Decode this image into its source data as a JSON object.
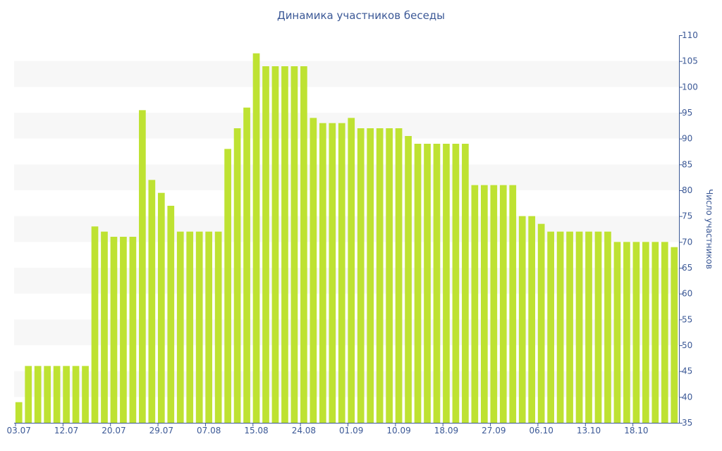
{
  "chart_data": {
    "type": "bar",
    "title": "Динамика участников беседы",
    "xlabel": "",
    "ylabel": "Число участников",
    "ylim": [
      35,
      110
    ],
    "yticks": [
      35,
      40,
      45,
      50,
      55,
      60,
      65,
      70,
      75,
      80,
      85,
      90,
      95,
      100,
      105,
      110
    ],
    "x_tick_labels": [
      {
        "index": 0,
        "label": "03.07"
      },
      {
        "index": 5,
        "label": "12.07"
      },
      {
        "index": 10,
        "label": "20.07"
      },
      {
        "index": 15,
        "label": "29.07"
      },
      {
        "index": 20,
        "label": "07.08"
      },
      {
        "index": 25,
        "label": "15.08"
      },
      {
        "index": 30,
        "label": "24.08"
      },
      {
        "index": 35,
        "label": "01.09"
      },
      {
        "index": 40,
        "label": "10.09"
      },
      {
        "index": 45,
        "label": "18.09"
      },
      {
        "index": 50,
        "label": "27.09"
      },
      {
        "index": 55,
        "label": "06.10"
      },
      {
        "index": 60,
        "label": "13.10"
      },
      {
        "index": 65,
        "label": "18.10"
      }
    ],
    "values": [
      39,
      46,
      46,
      46,
      46,
      46,
      46,
      46,
      73,
      72,
      71,
      71,
      71,
      95.5,
      82,
      79.5,
      77,
      72,
      72,
      72,
      72,
      72,
      88,
      92,
      96,
      106.5,
      104,
      104,
      104,
      104,
      104,
      94,
      93,
      93,
      93,
      94,
      92,
      92,
      92,
      92,
      92,
      90.5,
      89,
      89,
      89,
      89,
      89,
      89,
      81,
      81,
      81,
      81,
      81,
      75,
      75,
      73.5,
      72,
      72,
      72,
      72,
      72,
      72,
      72,
      70,
      70,
      70,
      70,
      70,
      70,
      69
    ],
    "bar_color": "#bee232",
    "axis_color": "#3b5896",
    "grid": "alternating horizontal bands",
    "band_color": "#f7f7f7",
    "y_axis_side": "right",
    "legend": "none"
  }
}
